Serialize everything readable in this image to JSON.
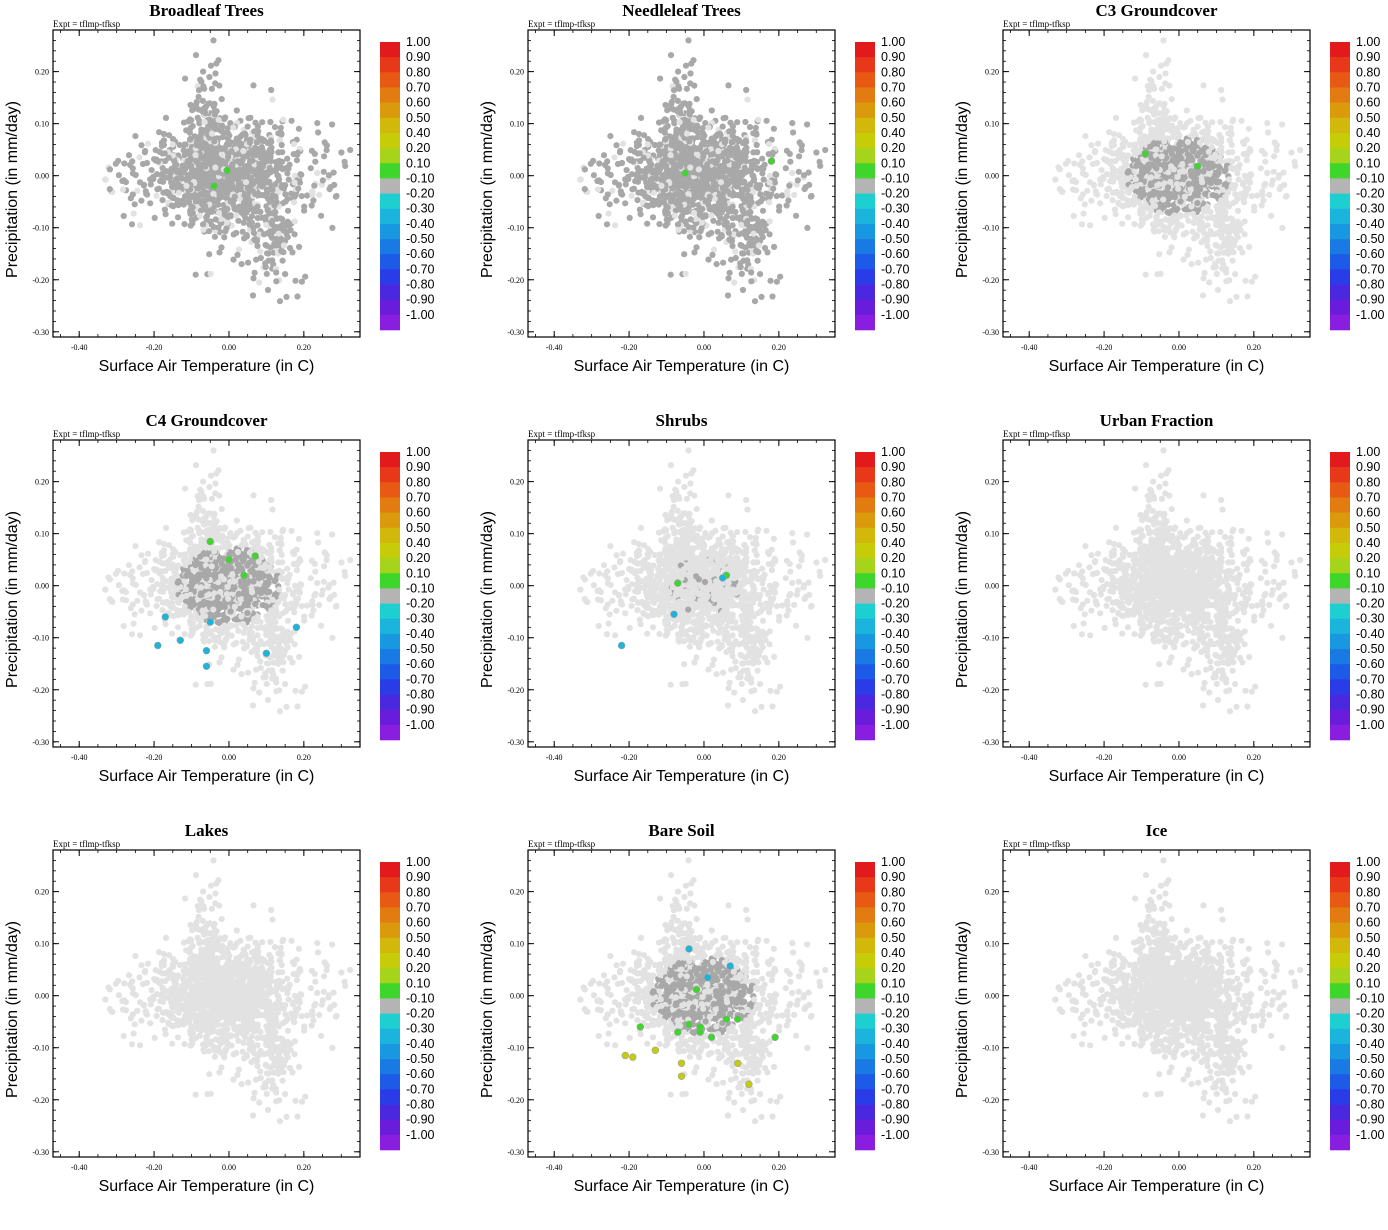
{
  "figure": {
    "expt_label": "Expt = tflmp-tfksp",
    "xlabel": "Surface Air Temperature (in C)",
    "ylabel": "Precipitation (in mm/day)",
    "x_ticks": [
      "-0.40",
      "-0.20",
      "0.00",
      "0.20"
    ],
    "y_ticks": [
      "0.20",
      "0.10",
      "0.00",
      "-0.10",
      "-0.20",
      "-0.30"
    ]
  },
  "colorbar": {
    "labels": [
      "1.00",
      "0.90",
      "0.80",
      "0.70",
      "0.60",
      "0.50",
      "0.40",
      "0.20",
      "0.10",
      "-0.10",
      "-0.20",
      "-0.30",
      "-0.40",
      "-0.50",
      "-0.60",
      "-0.70",
      "-0.80",
      "-0.90",
      "-1.00"
    ],
    "colors": [
      "#e31a1c",
      "#e8381a",
      "#e85a14",
      "#e27c10",
      "#da9a0c",
      "#d2b80a",
      "#c6cc08",
      "#a6d41a",
      "#3ed62a",
      "#b4b4b4",
      "#1ecfd2",
      "#1ab4dc",
      "#1898e0",
      "#1a7ae4",
      "#1e5ae8",
      "#2a3ce8",
      "#4a28e0",
      "#6a1cdc",
      "#8a1ee0"
    ]
  },
  "colors": {
    "background_point": "#e2e2e2",
    "grey_point": "#a8a8a8"
  },
  "panels": [
    {
      "title": "Broadleaf Trees",
      "grey_coverage": "wide"
    },
    {
      "title": "Needleleaf Trees",
      "grey_coverage": "wide"
    },
    {
      "title": "C3 Groundcover",
      "grey_coverage": "medium"
    },
    {
      "title": "C4 Groundcover",
      "grey_coverage": "medium"
    },
    {
      "title": "Shrubs",
      "grey_coverage": "small"
    },
    {
      "title": "Urban Fraction",
      "grey_coverage": "none"
    },
    {
      "title": "Lakes",
      "grey_coverage": "none"
    },
    {
      "title": "Bare Soil",
      "grey_coverage": "medium"
    },
    {
      "title": "Ice",
      "grey_coverage": "none"
    }
  ],
  "chart_data": [
    {
      "type": "scatter",
      "title": "Broadleaf Trees",
      "xlabel": "Surface Air Temperature (in C)",
      "ylabel": "Precipitation (in mm/day)",
      "xlim": [
        -0.47,
        0.35
      ],
      "ylim": [
        -0.31,
        0.28
      ],
      "colorbar_range": [
        -1.0,
        1.0
      ],
      "highlighted_points": [
        {
          "x": -0.005,
          "y": 0.01,
          "value": 0.15
        },
        {
          "x": -0.04,
          "y": -0.02,
          "value": 0.15
        }
      ]
    },
    {
      "type": "scatter",
      "title": "Needleleaf Trees",
      "xlabel": "Surface Air Temperature (in C)",
      "ylabel": "Precipitation (in mm/day)",
      "xlim": [
        -0.47,
        0.35
      ],
      "ylim": [
        -0.31,
        0.28
      ],
      "colorbar_range": [
        -1.0,
        1.0
      ],
      "highlighted_points": [
        {
          "x": -0.05,
          "y": 0.005,
          "value": 0.15
        },
        {
          "x": 0.18,
          "y": 0.028,
          "value": 0.15
        }
      ]
    },
    {
      "type": "scatter",
      "title": "C3 Groundcover",
      "xlabel": "Surface Air Temperature (in C)",
      "ylabel": "Precipitation (in mm/day)",
      "xlim": [
        -0.47,
        0.35
      ],
      "ylim": [
        -0.31,
        0.28
      ],
      "colorbar_range": [
        -1.0,
        1.0
      ],
      "highlighted_points": [
        {
          "x": -0.09,
          "y": 0.042,
          "value": 0.15
        },
        {
          "x": 0.05,
          "y": 0.018,
          "value": 0.15
        }
      ]
    },
    {
      "type": "scatter",
      "title": "C4 Groundcover",
      "xlabel": "Surface Air Temperature (in C)",
      "ylabel": "Precipitation (in mm/day)",
      "xlim": [
        -0.47,
        0.35
      ],
      "ylim": [
        -0.31,
        0.28
      ],
      "colorbar_range": [
        -1.0,
        1.0
      ],
      "highlighted_points": [
        {
          "x": -0.05,
          "y": 0.085,
          "value": 0.15
        },
        {
          "x": 0.0,
          "y": 0.05,
          "value": 0.15
        },
        {
          "x": 0.07,
          "y": 0.057,
          "value": 0.15
        },
        {
          "x": 0.04,
          "y": 0.02,
          "value": 0.15
        },
        {
          "x": -0.17,
          "y": -0.06,
          "value": -0.25
        },
        {
          "x": -0.13,
          "y": -0.105,
          "value": -0.25
        },
        {
          "x": -0.19,
          "y": -0.115,
          "value": -0.25
        },
        {
          "x": -0.06,
          "y": -0.125,
          "value": -0.25
        },
        {
          "x": -0.06,
          "y": -0.155,
          "value": -0.25
        },
        {
          "x": 0.18,
          "y": -0.08,
          "value": -0.25
        },
        {
          "x": -0.05,
          "y": -0.07,
          "value": -0.25
        },
        {
          "x": 0.1,
          "y": -0.13,
          "value": -0.25
        }
      ]
    },
    {
      "type": "scatter",
      "title": "Shrubs",
      "xlabel": "Surface Air Temperature (in C)",
      "ylabel": "Precipitation (in mm/day)",
      "xlim": [
        -0.47,
        0.35
      ],
      "ylim": [
        -0.31,
        0.28
      ],
      "colorbar_range": [
        -1.0,
        1.0
      ],
      "highlighted_points": [
        {
          "x": -0.07,
          "y": 0.005,
          "value": 0.15
        },
        {
          "x": 0.06,
          "y": 0.02,
          "value": 0.15
        },
        {
          "x": -0.08,
          "y": -0.055,
          "value": -0.25
        },
        {
          "x": -0.22,
          "y": -0.115,
          "value": -0.25
        },
        {
          "x": 0.05,
          "y": 0.015,
          "value": -0.25
        }
      ]
    },
    {
      "type": "scatter",
      "title": "Urban Fraction",
      "xlabel": "Surface Air Temperature (in C)",
      "ylabel": "Precipitation (in mm/day)",
      "xlim": [
        -0.47,
        0.35
      ],
      "ylim": [
        -0.31,
        0.28
      ],
      "colorbar_range": [
        -1.0,
        1.0
      ],
      "highlighted_points": []
    },
    {
      "type": "scatter",
      "title": "Lakes",
      "xlabel": "Surface Air Temperature (in C)",
      "ylabel": "Precipitation (in mm/day)",
      "xlim": [
        -0.47,
        0.35
      ],
      "ylim": [
        -0.31,
        0.28
      ],
      "colorbar_range": [
        -1.0,
        1.0
      ],
      "highlighted_points": []
    },
    {
      "type": "scatter",
      "title": "Bare Soil",
      "xlabel": "Surface Air Temperature (in C)",
      "ylabel": "Precipitation (in mm/day)",
      "xlim": [
        -0.47,
        0.35
      ],
      "ylim": [
        -0.31,
        0.28
      ],
      "colorbar_range": [
        -1.0,
        1.0
      ],
      "highlighted_points": [
        {
          "x": -0.02,
          "y": 0.012,
          "value": 0.15
        },
        {
          "x": -0.17,
          "y": -0.06,
          "value": 0.15
        },
        {
          "x": -0.07,
          "y": -0.07,
          "value": 0.15
        },
        {
          "x": -0.04,
          "y": -0.055,
          "value": 0.15
        },
        {
          "x": -0.01,
          "y": -0.07,
          "value": 0.15
        },
        {
          "x": 0.02,
          "y": -0.08,
          "value": 0.15
        },
        {
          "x": 0.06,
          "y": -0.045,
          "value": 0.15
        },
        {
          "x": 0.09,
          "y": -0.045,
          "value": 0.15
        },
        {
          "x": 0.19,
          "y": -0.08,
          "value": 0.15
        },
        {
          "x": -0.13,
          "y": -0.105,
          "value": 0.3
        },
        {
          "x": -0.21,
          "y": -0.115,
          "value": 0.3
        },
        {
          "x": -0.19,
          "y": -0.118,
          "value": 0.3
        },
        {
          "x": -0.06,
          "y": -0.13,
          "value": 0.3
        },
        {
          "x": -0.06,
          "y": -0.155,
          "value": 0.3
        },
        {
          "x": 0.09,
          "y": -0.13,
          "value": 0.3
        },
        {
          "x": 0.12,
          "y": -0.17,
          "value": 0.3
        },
        {
          "x": -0.01,
          "y": -0.06,
          "value": 0.15
        },
        {
          "x": -0.04,
          "y": 0.09,
          "value": -0.25
        },
        {
          "x": 0.01,
          "y": 0.035,
          "value": -0.25
        },
        {
          "x": 0.07,
          "y": 0.057,
          "value": -0.25
        }
      ]
    },
    {
      "type": "scatter",
      "title": "Ice",
      "xlabel": "Surface Air Temperature (in C)",
      "ylabel": "Precipitation (in mm/day)",
      "xlim": [
        -0.47,
        0.35
      ],
      "ylim": [
        -0.31,
        0.28
      ],
      "colorbar_range": [
        -1.0,
        1.0
      ],
      "highlighted_points": []
    }
  ]
}
